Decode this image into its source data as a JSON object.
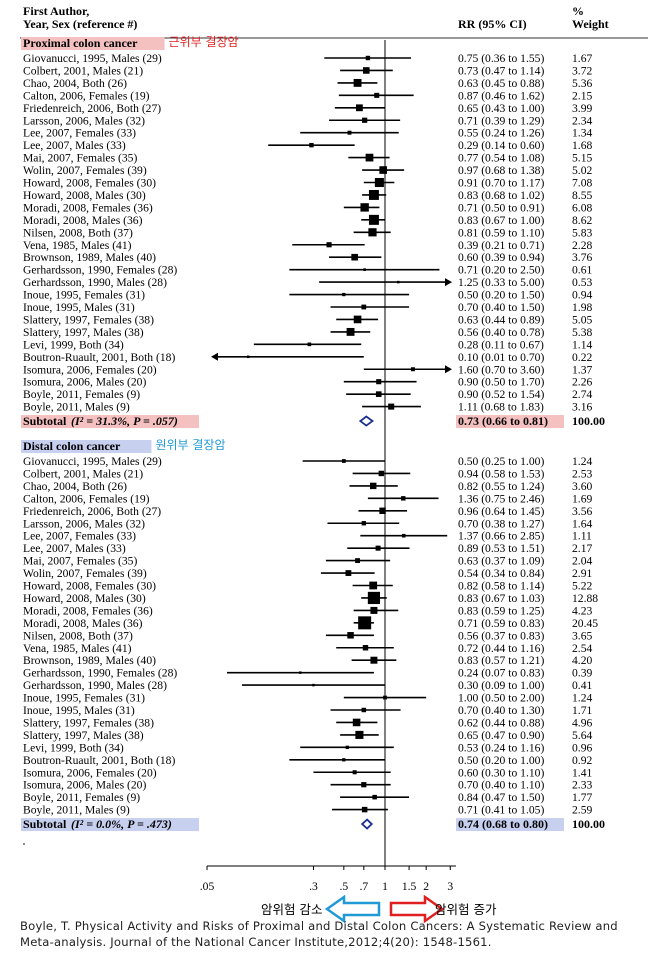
{
  "header": {
    "study_label": "First Author,",
    "study_sub": "Year, Sex (reference #)",
    "rr_label": "RR (95% CI)",
    "weight_top": "%",
    "weight_label": "Weight"
  },
  "sections": [
    {
      "title": "Proximal colon cancer",
      "title_bg": "#f4c0c0",
      "korean_label": "근위부 결장암",
      "korean_color": "#e02020",
      "studies": [
        {
          "label": "Giovanucci, 1995, Males (29)",
          "rr": 0.75,
          "lo": 0.36,
          "hi": 1.55,
          "ci_text": "0.75 (0.36 to 1.55)",
          "weight": "1.67"
        },
        {
          "label": "Colbert, 2001, Males (21)",
          "rr": 0.73,
          "lo": 0.47,
          "hi": 1.14,
          "ci_text": "0.73 (0.47 to 1.14)",
          "weight": "3.72"
        },
        {
          "label": "Chao, 2004, Both (26)",
          "rr": 0.63,
          "lo": 0.45,
          "hi": 0.88,
          "ci_text": "0.63 (0.45 to 0.88)",
          "weight": "5.36"
        },
        {
          "label": "Calton, 2006, Females (19)",
          "rr": 0.87,
          "lo": 0.46,
          "hi": 1.62,
          "ci_text": "0.87 (0.46 to 1.62)",
          "weight": "2.15"
        },
        {
          "label": "Friedenreich, 2006, Both (27)",
          "rr": 0.65,
          "lo": 0.43,
          "hi": 1.0,
          "ci_text": "0.65 (0.43 to 1.00)",
          "weight": "3.99"
        },
        {
          "label": "Larsson, 2006, Males (32)",
          "rr": 0.71,
          "lo": 0.39,
          "hi": 1.29,
          "ci_text": "0.71 (0.39 to 1.29)",
          "weight": "2.34"
        },
        {
          "label": "Lee, 2007, Females (33)",
          "rr": 0.55,
          "lo": 0.24,
          "hi": 1.26,
          "ci_text": "0.55 (0.24 to 1.26)",
          "weight": "1.34"
        },
        {
          "label": "Lee, 2007, Males (33)",
          "rr": 0.29,
          "lo": 0.14,
          "hi": 0.6,
          "ci_text": "0.29 (0.14 to 0.60)",
          "weight": "1.68"
        },
        {
          "label": "Mai, 2007, Females (35)",
          "rr": 0.77,
          "lo": 0.54,
          "hi": 1.08,
          "ci_text": "0.77 (0.54 to 1.08)",
          "weight": "5.15"
        },
        {
          "label": "Wolin, 2007, Females (39)",
          "rr": 0.97,
          "lo": 0.68,
          "hi": 1.38,
          "ci_text": "0.97 (0.68 to 1.38)",
          "weight": "5.02"
        },
        {
          "label": "Howard, 2008, Females (30)",
          "rr": 0.91,
          "lo": 0.7,
          "hi": 1.17,
          "ci_text": "0.91 (0.70 to 1.17)",
          "weight": "7.08"
        },
        {
          "label": "Howard, 2008, Males (30)",
          "rr": 0.83,
          "lo": 0.68,
          "hi": 1.02,
          "ci_text": "0.83 (0.68 to 1.02)",
          "weight": "8.55"
        },
        {
          "label": "Moradi, 2008, Females (36)",
          "rr": 0.71,
          "lo": 0.5,
          "hi": 0.91,
          "ci_text": "0.71 (0.50 to 0.91)",
          "weight": "6.08"
        },
        {
          "label": "Moradi, 2008, Males (36)",
          "rr": 0.83,
          "lo": 0.67,
          "hi": 1.0,
          "ci_text": "0.83 (0.67 to 1.00)",
          "weight": "8.62"
        },
        {
          "label": "Nilsen, 2008, Both (37)",
          "rr": 0.81,
          "lo": 0.59,
          "hi": 1.1,
          "ci_text": "0.81 (0.59 to 1.10)",
          "weight": "5.83"
        },
        {
          "label": "Vena, 1985, Males (41)",
          "rr": 0.39,
          "lo": 0.21,
          "hi": 0.71,
          "ci_text": "0.39 (0.21 to 0.71)",
          "weight": "2.28"
        },
        {
          "label": "Brownson, 1989, Males (40)",
          "rr": 0.6,
          "lo": 0.39,
          "hi": 0.94,
          "ci_text": "0.60 (0.39 to 0.94)",
          "weight": "3.76"
        },
        {
          "label": "Gerhardsson, 1990, Females (28)",
          "rr": 0.71,
          "lo": 0.2,
          "hi": 2.5,
          "ci_text": "0.71 (0.20 to 2.50)",
          "weight": "0.61"
        },
        {
          "label": "Gerhardsson, 1990, Males (28)",
          "rr": 1.25,
          "lo": 0.33,
          "hi": 5.0,
          "ci_text": "1.25 (0.33 to 5.00)",
          "weight": "0.53"
        },
        {
          "label": "Inoue, 1995, Females (31)",
          "rr": 0.5,
          "lo": 0.2,
          "hi": 1.5,
          "ci_text": "0.50 (0.20 to 1.50)",
          "weight": "0.94"
        },
        {
          "label": "Inoue, 1995, Males (31)",
          "rr": 0.7,
          "lo": 0.4,
          "hi": 1.5,
          "ci_text": "0.70 (0.40 to 1.50)",
          "weight": "1.98"
        },
        {
          "label": "Slattery, 1997, Females (38)",
          "rr": 0.63,
          "lo": 0.44,
          "hi": 0.89,
          "ci_text": "0.63 (0.44 to 0.89)",
          "weight": "5.05"
        },
        {
          "label": "Slattery, 1997, Males (38)",
          "rr": 0.56,
          "lo": 0.4,
          "hi": 0.78,
          "ci_text": "0.56 (0.40 to 0.78)",
          "weight": "5.38"
        },
        {
          "label": "Levi, 1999, Both (34)",
          "rr": 0.28,
          "lo": 0.11,
          "hi": 0.67,
          "ci_text": "0.28 (0.11 to 0.67)",
          "weight": "1.14"
        },
        {
          "label": "Boutron-Ruault, 2001, Both (18)",
          "rr": 0.1,
          "lo": 0.01,
          "hi": 0.7,
          "ci_text": "0.10 (0.01 to 0.70)",
          "weight": "0.22"
        },
        {
          "label": "Isomura, 2006, Females (20)",
          "rr": 1.6,
          "lo": 0.7,
          "hi": 3.6,
          "ci_text": "1.60 (0.70 to 3.60)",
          "weight": "1.37"
        },
        {
          "label": "Isomura, 2006, Males (20)",
          "rr": 0.9,
          "lo": 0.5,
          "hi": 1.7,
          "ci_text": "0.90 (0.50 to 1.70)",
          "weight": "2.26"
        },
        {
          "label": "Boyle, 2011, Females (9)",
          "rr": 0.9,
          "lo": 0.52,
          "hi": 1.54,
          "ci_text": "0.90 (0.52 to 1.54)",
          "weight": "2.74"
        },
        {
          "label": "Boyle, 2011, Males (9)",
          "rr": 1.11,
          "lo": 0.68,
          "hi": 1.83,
          "ci_text": "1.11 (0.68 to 1.83)",
          "weight": "3.16"
        }
      ],
      "subtotal": {
        "label": "Subtotal",
        "stats": "(I² = 31.3%, P = .057)",
        "rr": 0.73,
        "lo": 0.66,
        "hi": 0.81,
        "ci_text": "0.73 (0.66 to 0.81)",
        "ci_bg": "#f4c0c0",
        "weight": "100.00"
      }
    },
    {
      "title": "Distal colon cancer",
      "title_bg": "#c8d0f0",
      "korean_label": "원위부 결장암",
      "korean_color": "#1f9ad6",
      "studies": [
        {
          "label": "Giovanucci, 1995, Males (29)",
          "rr": 0.5,
          "lo": 0.25,
          "hi": 1.0,
          "ci_text": "0.50 (0.25 to 1.00)",
          "weight": "1.24"
        },
        {
          "label": "Colbert, 2001, Males (21)",
          "rr": 0.94,
          "lo": 0.58,
          "hi": 1.53,
          "ci_text": "0.94 (0.58 to 1.53)",
          "weight": "2.53"
        },
        {
          "label": "Chao, 2004, Both (26)",
          "rr": 0.82,
          "lo": 0.55,
          "hi": 1.24,
          "ci_text": "0.82 (0.55 to 1.24)",
          "weight": "3.60"
        },
        {
          "label": "Calton, 2006, Females (19)",
          "rr": 1.36,
          "lo": 0.75,
          "hi": 2.46,
          "ci_text": "1.36 (0.75 to 2.46)",
          "weight": "1.69"
        },
        {
          "label": "Friedenreich, 2006, Both (27)",
          "rr": 0.96,
          "lo": 0.64,
          "hi": 1.45,
          "ci_text": "0.96 (0.64 to 1.45)",
          "weight": "3.56"
        },
        {
          "label": "Larsson, 2006, Males (32)",
          "rr": 0.7,
          "lo": 0.38,
          "hi": 1.27,
          "ci_text": "0.70 (0.38 to 1.27)",
          "weight": "1.64"
        },
        {
          "label": "Lee, 2007, Females (33)",
          "rr": 1.37,
          "lo": 0.66,
          "hi": 2.85,
          "ci_text": "1.37 (0.66 to 2.85)",
          "weight": "1.11"
        },
        {
          "label": "Lee, 2007, Males (33)",
          "rr": 0.89,
          "lo": 0.53,
          "hi": 1.51,
          "ci_text": "0.89 (0.53 to 1.51)",
          "weight": "2.17"
        },
        {
          "label": "Mai, 2007, Females (35)",
          "rr": 0.63,
          "lo": 0.37,
          "hi": 1.09,
          "ci_text": "0.63 (0.37 to 1.09)",
          "weight": "2.04"
        },
        {
          "label": "Wolin, 2007, Females (39)",
          "rr": 0.54,
          "lo": 0.34,
          "hi": 0.84,
          "ci_text": "0.54 (0.34 to 0.84)",
          "weight": "2.91"
        },
        {
          "label": "Howard, 2008, Females (30)",
          "rr": 0.82,
          "lo": 0.58,
          "hi": 1.14,
          "ci_text": "0.82 (0.58 to 1.14)",
          "weight": "5.22"
        },
        {
          "label": "Howard, 2008, Males (30)",
          "rr": 0.83,
          "lo": 0.67,
          "hi": 1.03,
          "ci_text": "0.83 (0.67 to 1.03)",
          "weight": "12.88"
        },
        {
          "label": "Moradi, 2008, Females (36)",
          "rr": 0.83,
          "lo": 0.59,
          "hi": 1.25,
          "ci_text": "0.83 (0.59 to 1.25)",
          "weight": "4.23"
        },
        {
          "label": "Moradi, 2008, Males (36)",
          "rr": 0.71,
          "lo": 0.59,
          "hi": 0.83,
          "ci_text": "0.71 (0.59 to 0.83)",
          "weight": "20.45"
        },
        {
          "label": "Nilsen, 2008, Both (37)",
          "rr": 0.56,
          "lo": 0.37,
          "hi": 0.83,
          "ci_text": "0.56 (0.37 to 0.83)",
          "weight": "3.65"
        },
        {
          "label": "Vena, 1985, Males (41)",
          "rr": 0.72,
          "lo": 0.44,
          "hi": 1.16,
          "ci_text": "0.72 (0.44 to 1.16)",
          "weight": "2.54"
        },
        {
          "label": "Brownson, 1989, Males (40)",
          "rr": 0.83,
          "lo": 0.57,
          "hi": 1.21,
          "ci_text": "0.83 (0.57 to 1.21)",
          "weight": "4.20"
        },
        {
          "label": "Gerhardsson, 1990, Females (28)",
          "rr": 0.24,
          "lo": 0.07,
          "hi": 0.83,
          "ci_text": "0.24 (0.07 to 0.83)",
          "weight": "0.39"
        },
        {
          "label": "Gerhardsson, 1990, Males (28)",
          "rr": 0.3,
          "lo": 0.09,
          "hi": 1.0,
          "ci_text": "0.30 (0.09 to 1.00)",
          "weight": "0.41"
        },
        {
          "label": "Inoue, 1995, Females (31)",
          "rr": 1.0,
          "lo": 0.5,
          "hi": 2.0,
          "ci_text": "1.00 (0.50 to 2.00)",
          "weight": "1.24"
        },
        {
          "label": "Inoue, 1995, Males (31)",
          "rr": 0.7,
          "lo": 0.4,
          "hi": 1.3,
          "ci_text": "0.70 (0.40 to 1.30)",
          "weight": "1.71"
        },
        {
          "label": "Slattery, 1997, Females (38)",
          "rr": 0.62,
          "lo": 0.44,
          "hi": 0.88,
          "ci_text": "0.62 (0.44 to 0.88)",
          "weight": "4.96"
        },
        {
          "label": "Slattery, 1997, Males (38)",
          "rr": 0.65,
          "lo": 0.47,
          "hi": 0.9,
          "ci_text": "0.65 (0.47 to 0.90)",
          "weight": "5.64"
        },
        {
          "label": "Levi, 1999, Both (34)",
          "rr": 0.53,
          "lo": 0.24,
          "hi": 1.16,
          "ci_text": "0.53 (0.24 to 1.16)",
          "weight": "0.96"
        },
        {
          "label": "Boutron-Ruault, 2001, Both (18)",
          "rr": 0.5,
          "lo": 0.2,
          "hi": 1.0,
          "ci_text": "0.50 (0.20 to 1.00)",
          "weight": "0.92"
        },
        {
          "label": "Isomura, 2006, Females (20)",
          "rr": 0.6,
          "lo": 0.3,
          "hi": 1.1,
          "ci_text": "0.60 (0.30 to 1.10)",
          "weight": "1.41"
        },
        {
          "label": "Isomura, 2006, Males (20)",
          "rr": 0.7,
          "lo": 0.4,
          "hi": 1.1,
          "ci_text": "0.70 (0.40 to 1.10)",
          "weight": "2.33"
        },
        {
          "label": "Boyle, 2011, Females (9)",
          "rr": 0.84,
          "lo": 0.47,
          "hi": 1.5,
          "ci_text": "0.84 (0.47 to 1.50)",
          "weight": "1.77"
        },
        {
          "label": "Boyle, 2011, Males (9)",
          "rr": 0.71,
          "lo": 0.41,
          "hi": 1.05,
          "ci_text": "0.71 (0.41 to 1.05)",
          "weight": "2.59"
        }
      ],
      "subtotal": {
        "label": "Subtotal",
        "stats": "(I² = 0.0%, P = .473)",
        "rr": 0.74,
        "lo": 0.68,
        "hi": 0.8,
        "ci_text": "0.74 (0.68 to 0.80)",
        "ci_bg": "#c8d0f0",
        "weight": "100.00"
      }
    }
  ],
  "axis": {
    "scale": "log",
    "ticks": [
      {
        "value": 0.05,
        "label": ".05"
      },
      {
        "value": 0.3,
        "label": ".3"
      },
      {
        "value": 0.5,
        "label": ".5"
      },
      {
        "value": 0.7,
        "label": ".7"
      },
      {
        "value": 1,
        "label": "1"
      },
      {
        "value": 1.5,
        "label": "1.5"
      },
      {
        "value": 2,
        "label": "2"
      },
      {
        "value": 3,
        "label": "3"
      }
    ],
    "null_value": 1,
    "display_min": 0.05,
    "display_max": 3.3
  },
  "arrows": {
    "decrease_label": "암위험 감소",
    "decrease_color": "#1f9ad6",
    "increase_label": "암위험 증가",
    "increase_color": "#e02020"
  },
  "citation": "Boyle, T. Physical Activity and Risks of Proximal and Distal Colon Cancers: A Systematic Review and Meta-analysis. Journal of the National Cancer Institute,2012;4(20): 1548-1561."
}
